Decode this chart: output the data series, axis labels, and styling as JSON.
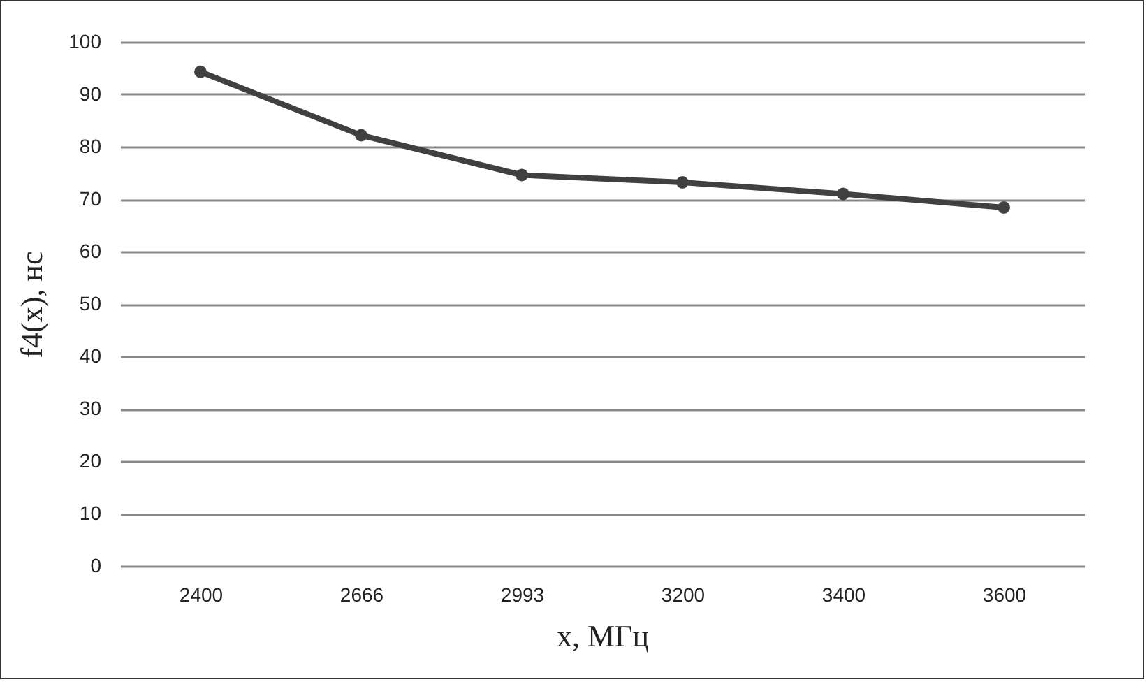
{
  "chart_data": {
    "type": "line",
    "xlabel": "x, МГц",
    "ylabel": "f4(x), нс",
    "categories": [
      "2400",
      "2666",
      "2993",
      "3200",
      "3400",
      "3600"
    ],
    "series": [
      {
        "color": "#404040",
        "values": [
          94.3,
          82.2,
          74.6,
          73.2,
          71.0,
          68.4
        ]
      }
    ],
    "ylim": [
      0,
      100
    ],
    "yticks": [
      0,
      10,
      20,
      30,
      40,
      50,
      60,
      70,
      80,
      90,
      100
    ],
    "grid": "y",
    "marker": "circle",
    "line_style": "solid"
  }
}
